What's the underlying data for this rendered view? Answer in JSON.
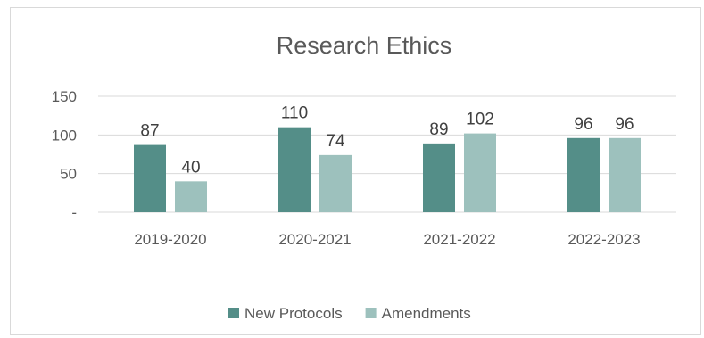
{
  "chart_data": {
    "type": "bar",
    "title": "Research Ethics",
    "categories": [
      "2019-2020",
      "2020-2021",
      "2021-2022",
      "2022-2023"
    ],
    "series": [
      {
        "name": "New Protocols",
        "values": [
          87,
          110,
          89,
          96
        ],
        "color": "#548e88"
      },
      {
        "name": "Amendments",
        "values": [
          40,
          74,
          102,
          96
        ],
        "color": "#9dc1bd"
      }
    ],
    "yticks": [
      {
        "value": 0,
        "label": "-"
      },
      {
        "value": 50,
        "label": "50"
      },
      {
        "value": 100,
        "label": "100"
      },
      {
        "value": 150,
        "label": "150"
      }
    ],
    "ylim": [
      0,
      150
    ],
    "grid": true,
    "legend_position": "bottom",
    "xlabel": "",
    "ylabel": ""
  }
}
